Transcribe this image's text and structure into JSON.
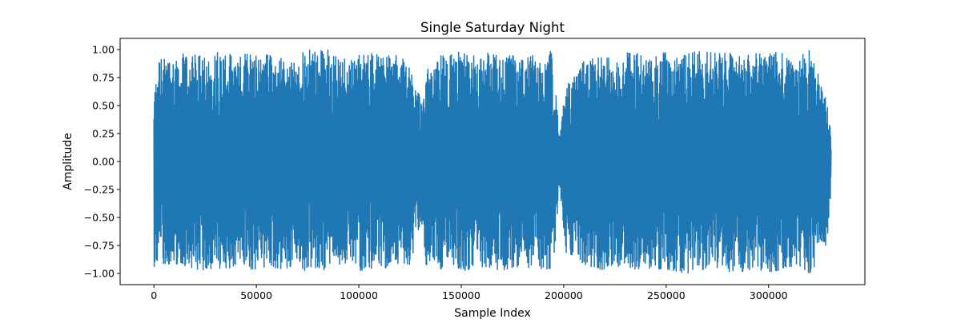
{
  "chart_data": {
    "type": "line",
    "title": "Single Saturday Night",
    "xlabel": "Sample Index",
    "ylabel": "Amplitude",
    "xlim": [
      -16500,
      347000
    ],
    "ylim": [
      -1.1,
      1.1
    ],
    "x_ticks": [
      0,
      50000,
      100000,
      150000,
      200000,
      250000,
      300000
    ],
    "x_tick_labels": [
      "0",
      "50000",
      "100000",
      "150000",
      "200000",
      "250000",
      "300000"
    ],
    "y_ticks": [
      1.0,
      0.75,
      0.5,
      0.25,
      0.0,
      -0.25,
      -0.5,
      -0.75,
      -1.0
    ],
    "y_tick_labels": [
      "1.00",
      "0.75",
      "0.50",
      "0.25",
      "0.00",
      "−0.25",
      "−0.50",
      "−0.75",
      "−1.00"
    ],
    "grid": false,
    "legend": "none",
    "series": [
      {
        "color": "#1f77b4",
        "x_range": [
          0,
          330500
        ],
        "envelope": {
          "x": [
            0,
            2000,
            5000,
            10000,
            15000,
            20000,
            25000,
            30000,
            35000,
            40000,
            45000,
            50000,
            55000,
            60000,
            65000,
            70000,
            74000,
            80000,
            83000,
            90000,
            95000,
            100000,
            105000,
            110000,
            115000,
            120000,
            125000,
            128000,
            131000,
            133000,
            136000,
            140000,
            145000,
            150000,
            155000,
            160000,
            165000,
            170000,
            175000,
            180000,
            185000,
            190000,
            194000,
            196000,
            198000,
            201000,
            205000,
            210000,
            215000,
            220000,
            225000,
            230000,
            235000,
            240000,
            245000,
            250000,
            255000,
            260000,
            265000,
            270000,
            275000,
            280000,
            285000,
            290000,
            295000,
            300000,
            305000,
            310000,
            315000,
            318000,
            320000,
            323000,
            325000,
            327000,
            328000,
            330000,
            330500
          ],
          "upper": [
            0.57,
            0.93,
            0.93,
            0.93,
            0.97,
            0.96,
            0.92,
            0.97,
            0.98,
            0.93,
            0.96,
            0.94,
            0.95,
            0.94,
            0.89,
            0.9,
            1.03,
            0.96,
            1.03,
            0.96,
            0.95,
            0.96,
            0.96,
            0.98,
            0.94,
            0.95,
            0.84,
            0.75,
            0.5,
            0.84,
            0.78,
            0.97,
            0.96,
            0.98,
            0.94,
            0.95,
            0.98,
            0.9,
            0.96,
            0.9,
            0.95,
            0.87,
            1.0,
            0.65,
            0.2,
            0.7,
            0.75,
            0.9,
            0.94,
            0.92,
            0.94,
            0.97,
            0.98,
            0.96,
            0.97,
            0.97,
            0.92,
            0.96,
            0.98,
            0.98,
            0.96,
            0.97,
            0.95,
            0.97,
            0.96,
            0.96,
            0.98,
            0.93,
            0.91,
            0.99,
            0.99,
            0.86,
            0.72,
            0.55,
            0.59,
            0.35,
            0.12
          ],
          "lower": [
            -0.94,
            -0.93,
            -0.91,
            -0.92,
            -0.93,
            -0.96,
            -0.97,
            -0.97,
            -0.95,
            -0.95,
            -0.96,
            -0.96,
            -0.96,
            -0.96,
            -0.95,
            -0.91,
            -0.98,
            -0.94,
            -0.97,
            -0.92,
            -0.9,
            -0.98,
            -0.96,
            -0.93,
            -0.96,
            -0.9,
            -0.92,
            -0.71,
            -0.55,
            -0.95,
            -0.86,
            -0.96,
            -0.92,
            -0.97,
            -0.98,
            -0.94,
            -0.96,
            -0.97,
            -0.95,
            -0.95,
            -0.96,
            -0.97,
            -0.95,
            -0.75,
            -0.22,
            -0.83,
            -0.85,
            -0.95,
            -0.95,
            -0.97,
            -0.93,
            -0.96,
            -0.96,
            -0.95,
            -0.96,
            -0.96,
            -0.98,
            -1.0,
            -0.97,
            -0.96,
            -0.97,
            -0.98,
            -0.99,
            -0.97,
            -0.97,
            -0.98,
            -0.99,
            -0.94,
            -0.93,
            -0.97,
            -1.0,
            -0.92,
            -0.72,
            -0.71,
            -0.82,
            -0.4,
            -0.15
          ]
        }
      }
    ]
  }
}
